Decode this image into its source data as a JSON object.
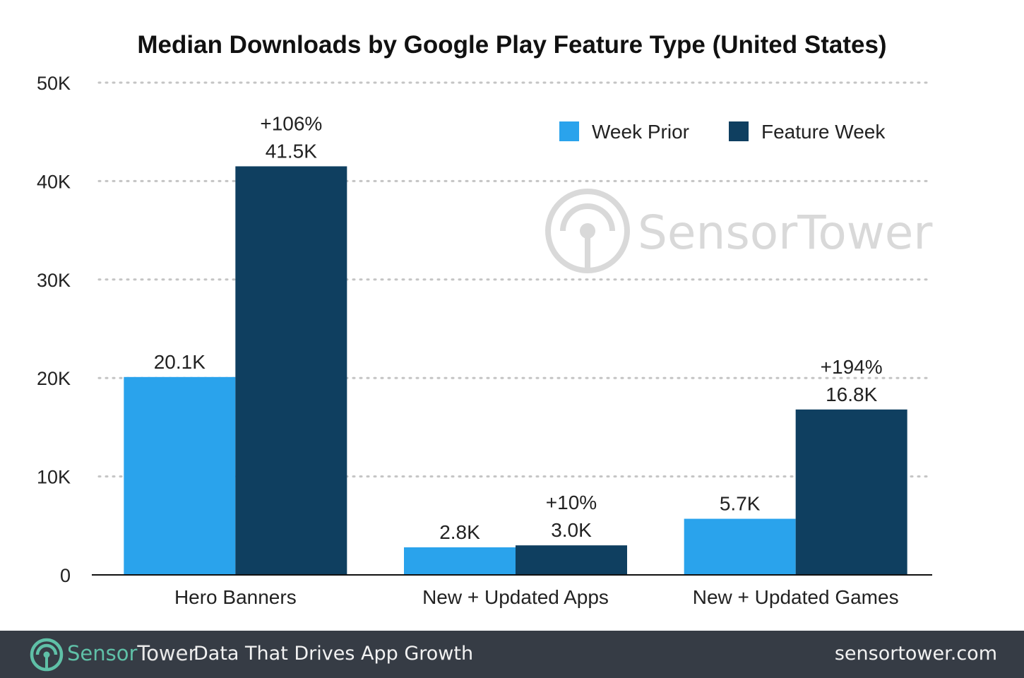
{
  "chart_data": {
    "type": "bar",
    "title": "Median Downloads by Google Play Feature Type (United States)",
    "categories": [
      "Hero Banners",
      "New + Updated Apps",
      "New + Updated Games"
    ],
    "series": [
      {
        "name": "Week Prior",
        "color": "#2aa3ec",
        "values": [
          20100,
          2800,
          5700
        ],
        "labels": [
          "20.1K",
          "2.8K",
          "5.7K"
        ]
      },
      {
        "name": "Feature Week",
        "color": "#0f3f60",
        "values": [
          41500,
          3000,
          16800
        ],
        "labels": [
          "41.5K",
          "3.0K",
          "16.8K"
        ],
        "change_labels": [
          "+106%",
          "+10%",
          "+194%"
        ]
      }
    ],
    "ylim": [
      0,
      50000
    ],
    "yticks": [
      0,
      10000,
      20000,
      30000,
      40000,
      50000
    ],
    "ytick_labels": [
      "0",
      "10K",
      "20K",
      "30K",
      "40K",
      "50K"
    ],
    "grid": true,
    "legend_position": "top-right"
  },
  "watermark": {
    "text_part1": "Sensor",
    "text_part2": "Tower",
    "icon": "sensortower-logo-icon"
  },
  "footer": {
    "brand_part1": "Sensor",
    "brand_part2": "Tower",
    "tagline": "Data That Drives App Growth",
    "url": "sensortower.com",
    "background": "#363c45",
    "brand_accent": "#5fc0a7"
  }
}
